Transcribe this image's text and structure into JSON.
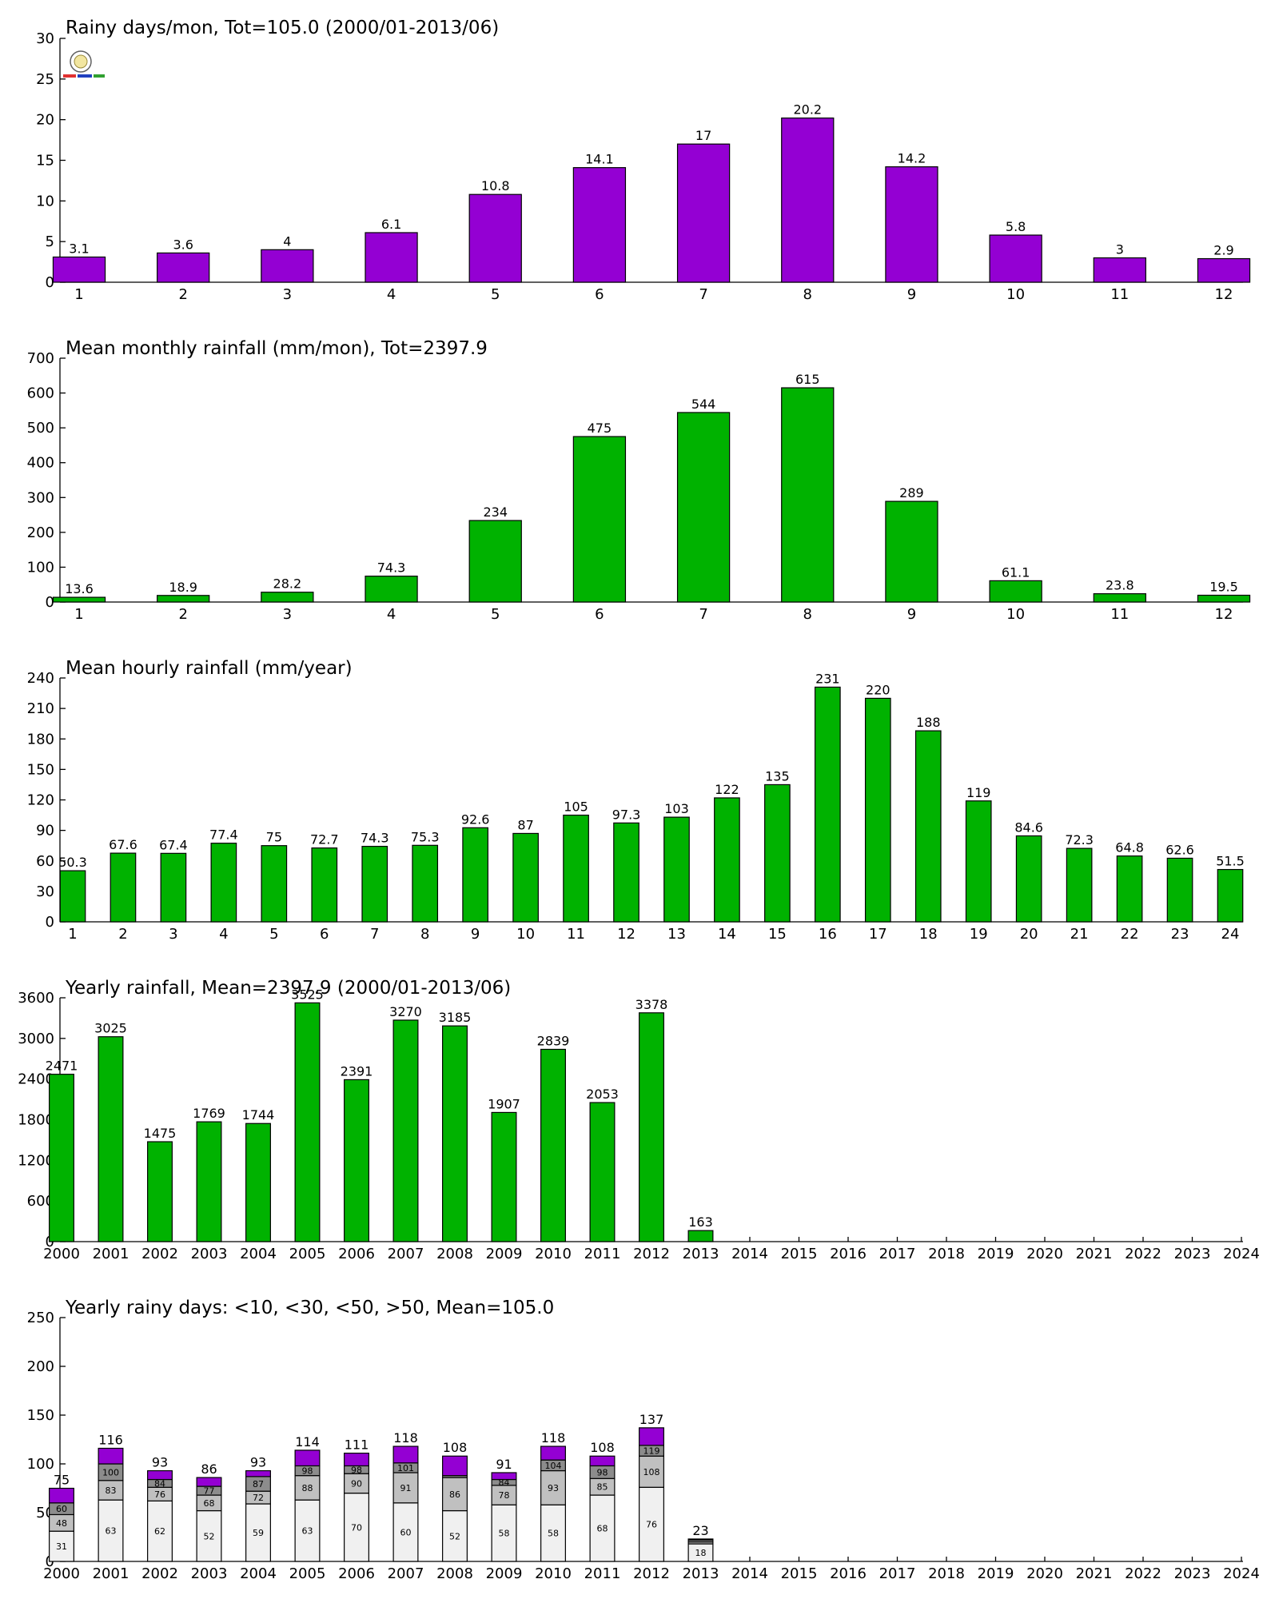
{
  "colors": {
    "purple": "#9400d3",
    "green": "#00b200",
    "seg_light": "#f0f0f0",
    "seg_mid": "#c0c0c0",
    "seg_dark": "#8c8c8c"
  },
  "chart_data": [
    {
      "type": "bar",
      "title": "Rainy days/mon, Tot=105.0 (2000/01-2013/06)",
      "color": "purple",
      "ylim": [
        0,
        30
      ],
      "yticks": [
        0,
        5,
        10,
        15,
        20,
        25,
        30
      ],
      "categories": [
        "1",
        "2",
        "3",
        "4",
        "5",
        "6",
        "7",
        "8",
        "9",
        "10",
        "11",
        "12"
      ],
      "values": [
        3.1,
        3.6,
        4,
        6.1,
        10.8,
        14.1,
        17,
        20.2,
        14.2,
        5.8,
        3,
        2.9
      ],
      "labels": [
        "3.1",
        "3.6",
        "4",
        "6.1",
        "10.8",
        "14.1",
        "17",
        "20.2",
        "14.2",
        "5.8",
        "3",
        "2.9"
      ]
    },
    {
      "type": "bar",
      "title": "Mean monthly rainfall (mm/mon), Tot=2397.9",
      "color": "green",
      "ylim": [
        0,
        700
      ],
      "yticks": [
        0,
        100,
        200,
        300,
        400,
        500,
        600,
        700
      ],
      "categories": [
        "1",
        "2",
        "3",
        "4",
        "5",
        "6",
        "7",
        "8",
        "9",
        "10",
        "11",
        "12"
      ],
      "values": [
        13.6,
        18.9,
        28.2,
        74.3,
        234,
        475,
        544,
        615,
        289,
        61.1,
        23.8,
        19.5
      ],
      "labels": [
        "13.6",
        "18.9",
        "28.2",
        "74.3",
        "234",
        "475",
        "544",
        "615",
        "289",
        "61.1",
        "23.8",
        "19.5"
      ]
    },
    {
      "type": "bar",
      "title": "Mean hourly rainfall (mm/year)",
      "color": "green",
      "ylim": [
        0,
        240
      ],
      "yticks": [
        0,
        30,
        60,
        90,
        120,
        150,
        180,
        210,
        240
      ],
      "categories": [
        "1",
        "2",
        "3",
        "4",
        "5",
        "6",
        "7",
        "8",
        "9",
        "10",
        "11",
        "12",
        "13",
        "14",
        "15",
        "16",
        "17",
        "18",
        "19",
        "20",
        "21",
        "22",
        "23",
        "24"
      ],
      "values": [
        50.3,
        67.6,
        67.4,
        77.4,
        75,
        72.7,
        74.3,
        75.3,
        92.6,
        87,
        105,
        97.3,
        103,
        122,
        135,
        231,
        220,
        188,
        119,
        84.6,
        72.3,
        64.8,
        62.6,
        51.5
      ],
      "labels": [
        "50.3",
        "67.6",
        "67.4",
        "77.4",
        "75",
        "72.7",
        "74.3",
        "75.3",
        "92.6",
        "87",
        "105",
        "97.3",
        "103",
        "122",
        "135",
        "231",
        "220",
        "188",
        "119",
        "84.6",
        "72.3",
        "64.8",
        "62.6",
        "51.5"
      ]
    },
    {
      "type": "bar",
      "title": "Yearly rainfall, Mean=2397.9 (2000/01-2013/06)",
      "color": "green",
      "ylim": [
        0,
        3600
      ],
      "yticks": [
        0,
        600,
        1200,
        1800,
        2400,
        3000,
        3600
      ],
      "categories": [
        "2000",
        "2001",
        "2002",
        "2003",
        "2004",
        "2005",
        "2006",
        "2007",
        "2008",
        "2009",
        "2010",
        "2011",
        "2012",
        "2013",
        "2014",
        "2015",
        "2016",
        "2017",
        "2018",
        "2019",
        "2020",
        "2021",
        "2022",
        "2023",
        "2024"
      ],
      "values": [
        2471,
        3025,
        1475,
        1769,
        1744,
        3525,
        2391,
        3270,
        3185,
        1907,
        2839,
        2053,
        3378,
        163,
        null,
        null,
        null,
        null,
        null,
        null,
        null,
        null,
        null,
        null,
        null
      ],
      "labels": [
        "2471",
        "3025",
        "1475",
        "1769",
        "1744",
        "3525",
        "2391",
        "3270",
        "3185",
        "1907",
        "2839",
        "2053",
        "3378",
        "163",
        "",
        "",
        "",
        "",
        "",
        "",
        "",
        "",
        "",
        "",
        ""
      ]
    },
    {
      "type": "bar",
      "stacked": true,
      "title": "Yearly rainy days: <10, <30, <50, >50, Mean=105.0",
      "ylim": [
        0,
        250
      ],
      "yticks": [
        0,
        50,
        100,
        150,
        200,
        250
      ],
      "categories": [
        "2000",
        "2001",
        "2002",
        "2003",
        "2004",
        "2005",
        "2006",
        "2007",
        "2008",
        "2009",
        "2010",
        "2011",
        "2012",
        "2013",
        "2014",
        "2015",
        "2016",
        "2017",
        "2018",
        "2019",
        "2020",
        "2021",
        "2022",
        "2023",
        "2024"
      ],
      "segment_colors": [
        "seg_light",
        "seg_mid",
        "seg_dark",
        "purple"
      ],
      "cumulative": [
        [
          31,
          48,
          60,
          75
        ],
        [
          63,
          83,
          100,
          116
        ],
        [
          62,
          76,
          84,
          93
        ],
        [
          52,
          68,
          77,
          86
        ],
        [
          59,
          72,
          87,
          93
        ],
        [
          63,
          88,
          98,
          114
        ],
        [
          70,
          90,
          98,
          111
        ],
        [
          60,
          91,
          101,
          118
        ],
        [
          52,
          86,
          88,
          108
        ],
        [
          58,
          78,
          84,
          91
        ],
        [
          58,
          93,
          104,
          118
        ],
        [
          68,
          85,
          98,
          108
        ],
        [
          76,
          108,
          119,
          137
        ],
        [
          18,
          20,
          22,
          23
        ],
        null,
        null,
        null,
        null,
        null,
        null,
        null,
        null,
        null,
        null,
        null
      ],
      "segment_labels": [
        [
          "31",
          "48",
          "60"
        ],
        [
          "63",
          "83",
          "100"
        ],
        [
          "62",
          "76",
          "84"
        ],
        [
          "52",
          "68",
          "77"
        ],
        [
          "59",
          "72",
          "87"
        ],
        [
          "63",
          "88",
          "98"
        ],
        [
          "70",
          "90",
          "98"
        ],
        [
          "60",
          "91",
          "101"
        ],
        [
          "52",
          "86",
          ""
        ],
        [
          "58",
          "78",
          "84"
        ],
        [
          "58",
          "93",
          "104"
        ],
        [
          "68",
          "85",
          "98"
        ],
        [
          "76",
          "108",
          "119"
        ],
        [
          "18",
          "",
          ""
        ],
        null,
        null,
        null,
        null,
        null,
        null,
        null,
        null,
        null,
        null,
        null
      ],
      "total_labels": [
        "75",
        "116",
        "93",
        "86",
        "93",
        "114",
        "111",
        "118",
        "108",
        "91",
        "118",
        "108",
        "137",
        "23",
        "",
        "",
        "",
        "",
        "",
        "",
        "",
        "",
        "",
        "",
        ""
      ]
    }
  ]
}
